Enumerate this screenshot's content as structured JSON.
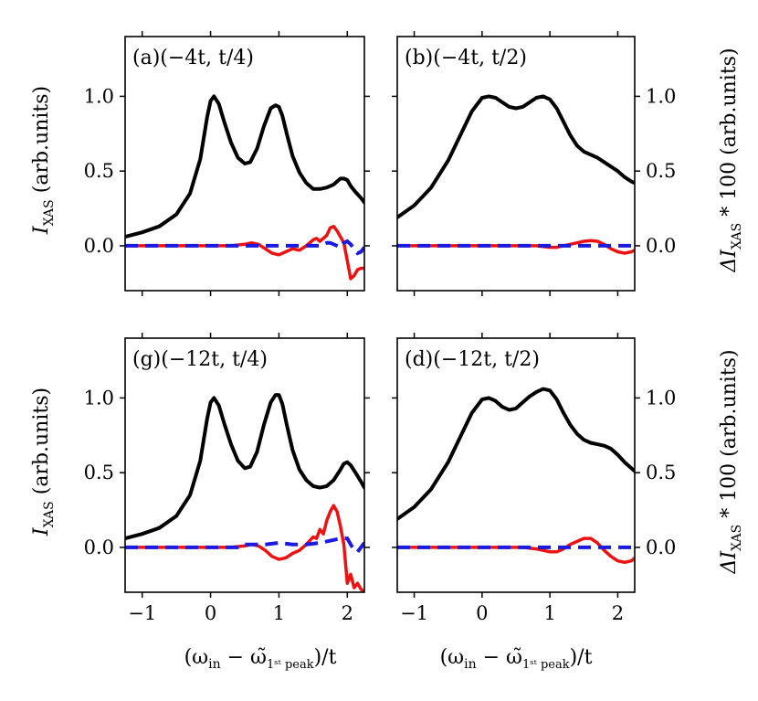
{
  "figure": {
    "ylabel_left": "I_XAS (arb.units)",
    "ylabel_left_parts": {
      "symbol": "I",
      "sub": "XAS",
      "rest": " (arb.units)"
    },
    "ylabel_right": "ΔI_XAS * 100 (arb.units)",
    "ylabel_right_parts": {
      "symbol": "ΔI",
      "sub": "XAS",
      "rest": " * 100 (arb.units)"
    },
    "xlabel": "(ω_in − ω̃_1st peak)/t",
    "xlabel_parts": {
      "open": "(ω",
      "sub_in": "in",
      "minus": " − ω̃",
      "sub_peak": "1ˢᵗ peak",
      "close": ")/t"
    },
    "colors": {
      "main": "#000000",
      "red": "#ee1111",
      "blue": "#1a1ae0"
    }
  },
  "chart_data": [
    {
      "type": "line",
      "panel": "top-left",
      "title": "(a)(−4t, t/4)",
      "xlim": [
        -1.25,
        2.25
      ],
      "ylim": [
        -0.3,
        1.4
      ],
      "xticks": [
        -1,
        0,
        1,
        2
      ],
      "yticks": [
        0.0,
        0.5,
        1.0
      ],
      "series": [
        {
          "name": "I_XAS",
          "style": "solid-black",
          "x": [
            -1.25,
            -1.0,
            -0.75,
            -0.5,
            -0.3,
            -0.15,
            -0.05,
            0.0,
            0.05,
            0.12,
            0.2,
            0.3,
            0.4,
            0.5,
            0.58,
            0.68,
            0.78,
            0.88,
            0.95,
            1.0,
            1.05,
            1.12,
            1.2,
            1.3,
            1.4,
            1.5,
            1.6,
            1.7,
            1.8,
            1.9,
            1.95,
            2.0,
            2.05,
            2.12,
            2.2,
            2.25
          ],
          "y": [
            0.06,
            0.09,
            0.13,
            0.21,
            0.35,
            0.58,
            0.86,
            0.97,
            1.0,
            0.95,
            0.83,
            0.69,
            0.59,
            0.55,
            0.56,
            0.65,
            0.8,
            0.92,
            0.94,
            0.93,
            0.87,
            0.74,
            0.6,
            0.49,
            0.42,
            0.38,
            0.38,
            0.39,
            0.41,
            0.45,
            0.45,
            0.44,
            0.4,
            0.36,
            0.32,
            0.29
          ]
        },
        {
          "name": "ΔI_XAS red",
          "style": "solid-red",
          "x": [
            -1.25,
            -0.5,
            0.0,
            0.3,
            0.5,
            0.6,
            0.7,
            0.8,
            0.9,
            1.0,
            1.1,
            1.2,
            1.3,
            1.4,
            1.5,
            1.55,
            1.6,
            1.7,
            1.75,
            1.8,
            1.85,
            1.9,
            1.95,
            2.0,
            2.05,
            2.1,
            2.15,
            2.2,
            2.25
          ],
          "y": [
            0.0,
            0.0,
            0.0,
            0.0,
            0.01,
            0.02,
            0.01,
            -0.02,
            -0.05,
            -0.06,
            -0.04,
            -0.02,
            -0.03,
            0.0,
            0.04,
            0.05,
            0.03,
            0.07,
            0.12,
            0.13,
            0.1,
            0.06,
            0.02,
            -0.1,
            -0.22,
            -0.2,
            -0.16,
            -0.15,
            -0.15
          ]
        },
        {
          "name": "ΔI_XAS blue",
          "style": "dashed-blue",
          "x": [
            -1.25,
            -0.5,
            0.0,
            0.5,
            1.0,
            1.3,
            1.5,
            1.6,
            1.65,
            1.7,
            1.75,
            1.8,
            1.85,
            1.9,
            1.95,
            2.0,
            2.05,
            2.1,
            2.15,
            2.2,
            2.25
          ],
          "y": [
            0.0,
            0.0,
            0.0,
            0.0,
            0.0,
            0.0,
            0.0,
            0.0,
            0.01,
            0.02,
            0.02,
            0.01,
            0.0,
            -0.01,
            0.02,
            0.03,
            0.01,
            -0.02,
            -0.05,
            -0.04,
            -0.01
          ]
        }
      ]
    },
    {
      "type": "line",
      "panel": "top-right",
      "title": "(b)(−4t, t/2)",
      "xlim": [
        -1.25,
        2.25
      ],
      "ylim": [
        -0.3,
        1.4
      ],
      "xticks": [
        -1,
        0,
        1,
        2
      ],
      "yticks": [
        0.0,
        0.5,
        1.0
      ],
      "series": [
        {
          "name": "I_XAS",
          "style": "solid-black",
          "x": [
            -1.25,
            -1.0,
            -0.75,
            -0.5,
            -0.3,
            -0.15,
            0.0,
            0.1,
            0.2,
            0.3,
            0.4,
            0.5,
            0.6,
            0.7,
            0.8,
            0.9,
            1.0,
            1.1,
            1.2,
            1.3,
            1.4,
            1.5,
            1.6,
            1.7,
            1.8,
            1.9,
            2.0,
            2.1,
            2.2,
            2.25
          ],
          "y": [
            0.19,
            0.27,
            0.39,
            0.57,
            0.76,
            0.9,
            0.99,
            1.0,
            0.99,
            0.96,
            0.93,
            0.92,
            0.93,
            0.96,
            0.99,
            1.0,
            0.98,
            0.92,
            0.83,
            0.74,
            0.67,
            0.63,
            0.61,
            0.59,
            0.56,
            0.53,
            0.5,
            0.46,
            0.43,
            0.42
          ]
        },
        {
          "name": "ΔI_XAS red",
          "style": "solid-red",
          "x": [
            -1.25,
            -0.5,
            0.0,
            0.3,
            0.6,
            0.8,
            1.0,
            1.1,
            1.2,
            1.3,
            1.4,
            1.5,
            1.6,
            1.7,
            1.8,
            1.9,
            2.0,
            2.1,
            2.2,
            2.25
          ],
          "y": [
            0.0,
            0.0,
            0.0,
            0.0,
            0.0,
            0.0,
            -0.01,
            -0.01,
            0.0,
            0.01,
            0.02,
            0.03,
            0.035,
            0.03,
            0.01,
            -0.02,
            -0.04,
            -0.05,
            -0.04,
            -0.03
          ]
        },
        {
          "name": "ΔI_XAS blue",
          "style": "dashed-blue",
          "x": [
            -1.25,
            0.0,
            1.0,
            2.0,
            2.25
          ],
          "y": [
            0.0,
            0.0,
            0.0,
            0.0,
            0.0
          ]
        }
      ]
    },
    {
      "type": "line",
      "panel": "bottom-left",
      "title": "(g)(−12t, t/4)",
      "xlim": [
        -1.25,
        2.25
      ],
      "ylim": [
        -0.3,
        1.4
      ],
      "xticks": [
        -1,
        0,
        1,
        2
      ],
      "yticks": [
        0.0,
        0.5,
        1.0
      ],
      "series": [
        {
          "name": "I_XAS",
          "style": "solid-black",
          "x": [
            -1.25,
            -1.0,
            -0.75,
            -0.5,
            -0.3,
            -0.15,
            -0.05,
            0.0,
            0.05,
            0.12,
            0.2,
            0.3,
            0.4,
            0.5,
            0.58,
            0.68,
            0.78,
            0.88,
            0.95,
            1.0,
            1.05,
            1.12,
            1.2,
            1.3,
            1.4,
            1.5,
            1.6,
            1.7,
            1.8,
            1.9,
            1.95,
            2.0,
            2.05,
            2.12,
            2.2,
            2.25
          ],
          "y": [
            0.06,
            0.09,
            0.13,
            0.21,
            0.35,
            0.58,
            0.86,
            0.97,
            1.0,
            0.95,
            0.83,
            0.69,
            0.58,
            0.53,
            0.54,
            0.64,
            0.82,
            0.97,
            1.02,
            1.02,
            0.96,
            0.81,
            0.65,
            0.52,
            0.45,
            0.41,
            0.4,
            0.41,
            0.45,
            0.52,
            0.56,
            0.57,
            0.55,
            0.5,
            0.44,
            0.4
          ]
        },
        {
          "name": "ΔI_XAS red",
          "style": "solid-red",
          "x": [
            -1.25,
            -0.5,
            0.0,
            0.3,
            0.5,
            0.6,
            0.7,
            0.8,
            0.9,
            1.0,
            1.1,
            1.2,
            1.3,
            1.4,
            1.5,
            1.55,
            1.6,
            1.65,
            1.7,
            1.75,
            1.8,
            1.85,
            1.9,
            1.95,
            2.0,
            2.05,
            2.1,
            2.15,
            2.2,
            2.25
          ],
          "y": [
            0.0,
            0.0,
            0.0,
            0.0,
            0.01,
            0.02,
            0.01,
            -0.02,
            -0.06,
            -0.08,
            -0.07,
            -0.04,
            -0.02,
            0.02,
            0.07,
            0.06,
            0.12,
            0.09,
            0.18,
            0.24,
            0.28,
            0.24,
            0.14,
            0.02,
            -0.24,
            -0.18,
            -0.27,
            -0.24,
            -0.28,
            -0.3
          ]
        },
        {
          "name": "ΔI_XAS blue",
          "style": "dashed-blue",
          "x": [
            -1.25,
            0.0,
            0.3,
            0.4,
            0.5,
            0.6,
            0.8,
            1.0,
            1.2,
            1.4,
            1.6,
            1.8,
            1.9,
            2.0,
            2.05,
            2.1,
            2.15,
            2.2,
            2.25
          ],
          "y": [
            0.0,
            0.0,
            0.0,
            0.0,
            0.02,
            0.02,
            0.02,
            0.03,
            0.02,
            0.02,
            0.03,
            0.05,
            0.06,
            0.06,
            0.02,
            -0.02,
            -0.03,
            0.0,
            0.03
          ]
        }
      ]
    },
    {
      "type": "line",
      "panel": "bottom-right",
      "title": "(d)(−12t, t/2)",
      "xlim": [
        -1.25,
        2.25
      ],
      "ylim": [
        -0.3,
        1.4
      ],
      "xticks": [
        -1,
        0,
        1,
        2
      ],
      "yticks": [
        0.0,
        0.5,
        1.0
      ],
      "series": [
        {
          "name": "I_XAS",
          "style": "solid-black",
          "x": [
            -1.25,
            -1.0,
            -0.75,
            -0.5,
            -0.3,
            -0.15,
            0.0,
            0.1,
            0.2,
            0.3,
            0.4,
            0.5,
            0.6,
            0.7,
            0.8,
            0.9,
            1.0,
            1.1,
            1.2,
            1.3,
            1.4,
            1.5,
            1.6,
            1.7,
            1.8,
            1.9,
            2.0,
            2.1,
            2.2,
            2.25
          ],
          "y": [
            0.19,
            0.27,
            0.39,
            0.57,
            0.76,
            0.9,
            0.99,
            1.0,
            0.98,
            0.94,
            0.92,
            0.93,
            0.97,
            1.01,
            1.04,
            1.06,
            1.05,
            0.99,
            0.9,
            0.82,
            0.76,
            0.72,
            0.7,
            0.69,
            0.68,
            0.66,
            0.62,
            0.57,
            0.53,
            0.51
          ]
        },
        {
          "name": "ΔI_XAS red",
          "style": "solid-red",
          "x": [
            -1.25,
            -0.5,
            0.0,
            0.3,
            0.6,
            0.8,
            0.9,
            1.0,
            1.1,
            1.2,
            1.3,
            1.4,
            1.5,
            1.6,
            1.7,
            1.8,
            1.9,
            2.0,
            2.1,
            2.2,
            2.25
          ],
          "y": [
            0.0,
            0.0,
            0.0,
            0.0,
            0.0,
            -0.01,
            -0.02,
            -0.03,
            -0.03,
            -0.01,
            0.02,
            0.04,
            0.06,
            0.06,
            0.03,
            -0.02,
            -0.06,
            -0.09,
            -0.1,
            -0.09,
            -0.07
          ]
        },
        {
          "name": "ΔI_XAS blue",
          "style": "dashed-blue",
          "x": [
            -1.25,
            0.0,
            1.0,
            2.0,
            2.25
          ],
          "y": [
            0.0,
            0.0,
            0.0,
            0.0,
            0.0
          ]
        }
      ]
    }
  ]
}
